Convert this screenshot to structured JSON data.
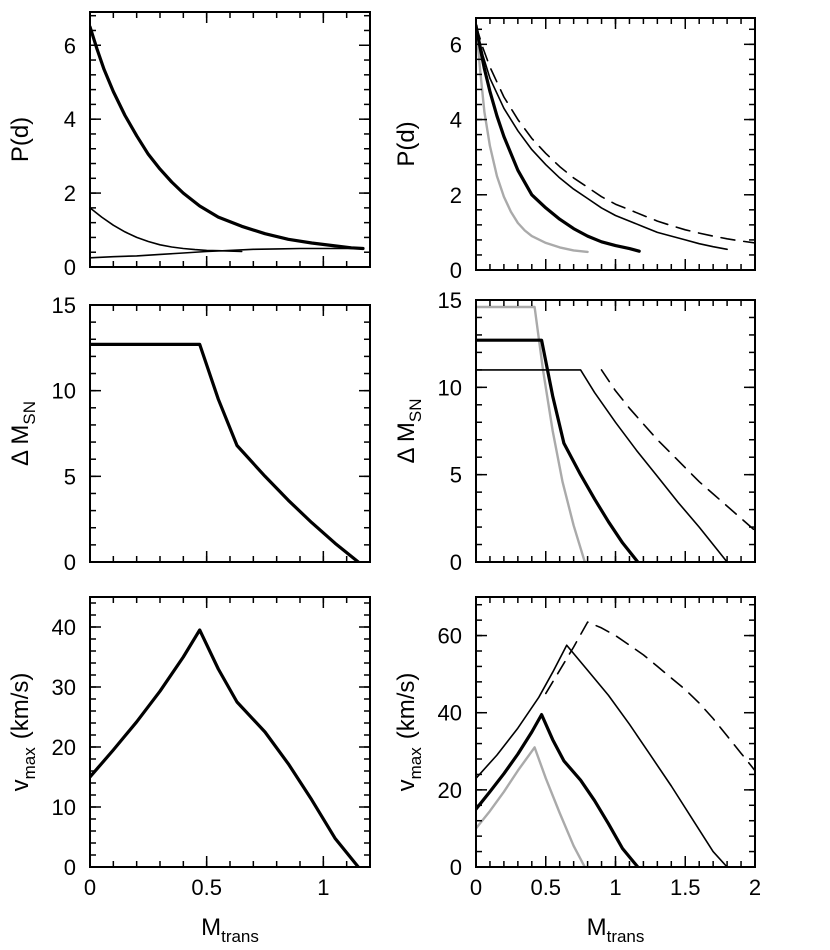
{
  "chart_data": [
    {
      "id": "p-left",
      "type": "line",
      "panel": "top-left",
      "xlabel": "",
      "ylabel": "P(d)",
      "xlim": [
        0,
        1.2
      ],
      "ylim": [
        0,
        6.9
      ],
      "xticks": [
        0,
        0.5,
        1
      ],
      "yticks": [
        0,
        2,
        4,
        6
      ],
      "xtick_labels": [],
      "ytick_labels": [
        "0",
        "2",
        "4",
        "6"
      ],
      "series": [
        {
          "name": "thick",
          "style": "thick",
          "color": "#000000",
          "x": [
            0,
            0.03,
            0.06,
            0.1,
            0.15,
            0.2,
            0.25,
            0.3,
            0.35,
            0.4,
            0.47,
            0.55,
            0.65,
            0.75,
            0.85,
            0.95,
            1.05,
            1.12,
            1.17
          ],
          "y": [
            6.5,
            5.9,
            5.35,
            4.75,
            4.1,
            3.55,
            3.05,
            2.65,
            2.3,
            2.0,
            1.65,
            1.35,
            1.1,
            0.9,
            0.75,
            0.65,
            0.57,
            0.52,
            0.5
          ]
        },
        {
          "name": "thin-upper",
          "style": "thin",
          "color": "#000000",
          "x": [
            0,
            0.05,
            0.1,
            0.15,
            0.2,
            0.25,
            0.3,
            0.35,
            0.4,
            0.45,
            0.5,
            0.55,
            0.6,
            0.65
          ],
          "y": [
            1.6,
            1.35,
            1.13,
            0.95,
            0.8,
            0.69,
            0.6,
            0.54,
            0.5,
            0.47,
            0.45,
            0.44,
            0.43,
            0.42
          ]
        },
        {
          "name": "thin-lower",
          "style": "thin",
          "color": "#000000",
          "x": [
            0,
            0.1,
            0.2,
            0.3,
            0.4,
            0.5,
            0.6,
            0.7,
            0.8,
            0.9,
            1.0,
            1.1,
            1.17
          ],
          "y": [
            0.25,
            0.28,
            0.3,
            0.34,
            0.38,
            0.42,
            0.45,
            0.48,
            0.49,
            0.5,
            0.5,
            0.5,
            0.5
          ]
        }
      ]
    },
    {
      "id": "p-right",
      "type": "line",
      "panel": "top-right",
      "xlabel": "",
      "ylabel": "P(d)",
      "xlim": [
        0,
        2.0
      ],
      "ylim": [
        0,
        6.7
      ],
      "xticks": [
        0,
        0.5,
        1,
        1.5,
        2
      ],
      "yticks": [
        0,
        2,
        4,
        6
      ],
      "xtick_labels": [],
      "ytick_labels": [
        "0",
        "2",
        "4",
        "6"
      ],
      "series": [
        {
          "name": "gray",
          "style": "gray",
          "color": "#aaaaaa",
          "x": [
            0,
            0.03,
            0.06,
            0.1,
            0.15,
            0.2,
            0.25,
            0.3,
            0.35,
            0.4,
            0.5,
            0.6,
            0.7,
            0.8
          ],
          "y": [
            6.5,
            5.3,
            4.2,
            3.3,
            2.5,
            1.95,
            1.55,
            1.25,
            1.05,
            0.9,
            0.72,
            0.6,
            0.52,
            0.48
          ]
        },
        {
          "name": "thick",
          "style": "thick",
          "color": "#000000",
          "x": [
            0,
            0.03,
            0.06,
            0.1,
            0.15,
            0.2,
            0.3,
            0.4,
            0.5,
            0.6,
            0.7,
            0.8,
            0.9,
            1.0,
            1.1,
            1.17
          ],
          "y": [
            6.5,
            5.9,
            5.35,
            4.75,
            4.1,
            3.55,
            2.65,
            2.0,
            1.65,
            1.35,
            1.1,
            0.9,
            0.75,
            0.65,
            0.57,
            0.5
          ]
        },
        {
          "name": "thin",
          "style": "thin",
          "color": "#000000",
          "x": [
            0,
            0.05,
            0.1,
            0.2,
            0.3,
            0.4,
            0.5,
            0.6,
            0.7,
            0.8,
            0.9,
            1.0,
            1.1,
            1.2,
            1.3,
            1.4,
            1.5,
            1.6,
            1.7,
            1.8
          ],
          "y": [
            6.5,
            5.7,
            5.1,
            4.3,
            3.7,
            3.2,
            2.8,
            2.45,
            2.15,
            1.9,
            1.65,
            1.45,
            1.3,
            1.15,
            1.0,
            0.9,
            0.8,
            0.7,
            0.62,
            0.55
          ]
        },
        {
          "name": "dashed",
          "style": "dashed",
          "color": "#000000",
          "x": [
            0,
            0.05,
            0.1,
            0.2,
            0.3,
            0.4,
            0.5,
            0.6,
            0.7,
            0.8,
            0.9,
            1.0,
            1.1,
            1.2,
            1.3,
            1.4,
            1.5,
            1.6,
            1.7,
            1.8,
            1.9,
            2.0
          ],
          "y": [
            6.5,
            5.9,
            5.4,
            4.6,
            4.0,
            3.5,
            3.1,
            2.75,
            2.45,
            2.2,
            1.95,
            1.75,
            1.6,
            1.45,
            1.3,
            1.18,
            1.07,
            0.98,
            0.9,
            0.83,
            0.77,
            0.72
          ]
        }
      ]
    },
    {
      "id": "dm-left",
      "type": "line",
      "panel": "middle-left",
      "xlabel": "",
      "ylabel": "Δ M",
      "ylabel_sub": "SN",
      "xlim": [
        0,
        1.2
      ],
      "ylim": [
        0,
        15
      ],
      "xticks": [
        0,
        0.5,
        1
      ],
      "yticks": [
        0,
        5,
        10,
        15
      ],
      "xtick_labels": [],
      "ytick_labels": [
        "0",
        "5",
        "10",
        "15"
      ],
      "series": [
        {
          "name": "thick",
          "style": "thick",
          "color": "#000000",
          "x": [
            0,
            0.47,
            0.55,
            0.63,
            0.75,
            0.85,
            0.95,
            1.05,
            1.15
          ],
          "y": [
            12.7,
            12.7,
            9.5,
            6.8,
            5.0,
            3.6,
            2.3,
            1.1,
            0.0
          ]
        }
      ]
    },
    {
      "id": "dm-right",
      "type": "line",
      "panel": "middle-right",
      "xlabel": "",
      "ylabel": "Δ M",
      "ylabel_sub": "SN",
      "xlim": [
        0,
        2.0
      ],
      "ylim": [
        0,
        15
      ],
      "xticks": [
        0,
        0.5,
        1,
        1.5,
        2
      ],
      "yticks": [
        0,
        5,
        10,
        15
      ],
      "xtick_labels": [],
      "ytick_labels": [
        "0",
        "5",
        "10",
        "15"
      ],
      "series": [
        {
          "name": "gray",
          "style": "gray",
          "color": "#aaaaaa",
          "x": [
            0,
            0.42,
            0.48,
            0.55,
            0.62,
            0.7,
            0.78
          ],
          "y": [
            14.6,
            14.6,
            11.0,
            7.5,
            4.6,
            2.1,
            0.0
          ]
        },
        {
          "name": "thick",
          "style": "thick",
          "color": "#000000",
          "x": [
            0,
            0.47,
            0.55,
            0.63,
            0.75,
            0.85,
            0.95,
            1.05,
            1.16
          ],
          "y": [
            12.7,
            12.7,
            9.5,
            6.8,
            5.0,
            3.6,
            2.3,
            1.1,
            0.0
          ]
        },
        {
          "name": "thin",
          "style": "thin",
          "color": "#000000",
          "x": [
            0,
            0.75,
            0.85,
            1.0,
            1.15,
            1.3,
            1.45,
            1.6,
            1.75,
            1.8
          ],
          "y": [
            11.0,
            11.0,
            9.7,
            8.0,
            6.4,
            4.9,
            3.4,
            2.0,
            0.5,
            0.0
          ]
        },
        {
          "name": "dashed",
          "style": "dashed",
          "color": "#000000",
          "x": [
            0.9,
            1.0,
            1.1,
            1.2,
            1.3,
            1.4,
            1.5,
            1.6,
            1.7,
            1.8,
            1.9,
            2.0
          ],
          "y": [
            11.0,
            9.8,
            8.8,
            7.9,
            7.0,
            6.2,
            5.4,
            4.6,
            3.9,
            3.2,
            2.5,
            1.8
          ]
        }
      ]
    },
    {
      "id": "v-left",
      "type": "line",
      "panel": "bottom-left",
      "xlabel": "M",
      "xlabel_sub": "trans",
      "ylabel": "v",
      "ylabel_sub": "max",
      "ylabel_tail": "(km/s)",
      "xlim": [
        0,
        1.2
      ],
      "ylim": [
        0,
        45
      ],
      "xticks": [
        0,
        0.5,
        1
      ],
      "yticks": [
        0,
        10,
        20,
        30,
        40
      ],
      "xtick_labels": [
        "0",
        "0.5",
        "1"
      ],
      "ytick_labels": [
        "0",
        "10",
        "20",
        "30",
        "40"
      ],
      "series": [
        {
          "name": "thick",
          "style": "thick",
          "color": "#000000",
          "x": [
            0,
            0.1,
            0.2,
            0.3,
            0.4,
            0.47,
            0.55,
            0.63,
            0.75,
            0.85,
            0.95,
            1.05,
            1.15
          ],
          "y": [
            15,
            19.5,
            24.2,
            29.3,
            35,
            39.5,
            33,
            27.5,
            22.5,
            17.2,
            11.2,
            4.8,
            0
          ]
        }
      ]
    },
    {
      "id": "v-right",
      "type": "line",
      "panel": "bottom-right",
      "xlabel": "M",
      "xlabel_sub": "trans",
      "ylabel": "v",
      "ylabel_sub": "max",
      "ylabel_tail": "(km/s)",
      "xlim": [
        0,
        2.0
      ],
      "ylim": [
        0,
        70
      ],
      "xticks": [
        0,
        0.5,
        1,
        1.5,
        2
      ],
      "yticks": [
        0,
        20,
        40,
        60
      ],
      "xtick_labels": [
        "0",
        "0.5",
        "1",
        "1.5",
        "2"
      ],
      "ytick_labels": [
        "0",
        "20",
        "40",
        "60"
      ],
      "series": [
        {
          "name": "gray",
          "style": "gray",
          "color": "#aaaaaa",
          "x": [
            0,
            0.1,
            0.2,
            0.3,
            0.42,
            0.5,
            0.6,
            0.7,
            0.78
          ],
          "y": [
            10,
            14.5,
            19.5,
            25,
            31,
            23,
            14,
            5.5,
            0
          ]
        },
        {
          "name": "thick",
          "style": "thick",
          "color": "#000000",
          "x": [
            0,
            0.1,
            0.2,
            0.3,
            0.4,
            0.47,
            0.55,
            0.63,
            0.75,
            0.85,
            0.95,
            1.05,
            1.16
          ],
          "y": [
            15,
            19.5,
            24.2,
            29.3,
            35,
            39.5,
            33,
            27.5,
            22.5,
            17.2,
            11.2,
            4.8,
            0
          ]
        },
        {
          "name": "thin",
          "style": "thin",
          "color": "#000000",
          "x": [
            0,
            0.15,
            0.3,
            0.45,
            0.55,
            0.65,
            0.8,
            0.95,
            1.1,
            1.25,
            1.4,
            1.55,
            1.7,
            1.8
          ],
          "y": [
            23,
            29,
            36,
            44,
            50.5,
            57.5,
            51,
            44.5,
            37,
            29,
            21,
            12.5,
            4,
            0
          ]
        },
        {
          "name": "dashed",
          "style": "dashed",
          "color": "#000000",
          "x": [
            0.5,
            0.6,
            0.7,
            0.8,
            0.9,
            1.0,
            1.1,
            1.2,
            1.3,
            1.4,
            1.5,
            1.6,
            1.7,
            1.8,
            1.9,
            2.0
          ],
          "y": [
            45,
            51,
            57,
            63.5,
            62,
            60,
            57.5,
            55,
            52,
            49,
            46,
            42.5,
            38.5,
            34,
            29.5,
            25
          ]
        }
      ]
    }
  ]
}
